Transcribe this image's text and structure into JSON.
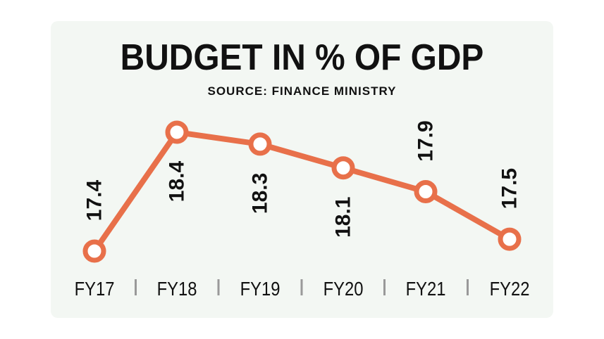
{
  "chart_data": {
    "type": "line",
    "title": "BUDGET IN % OF GDP",
    "subtitle": "SOURCE: FINANCE MINISTRY",
    "categories": [
      "FY17",
      "FY18",
      "FY19",
      "FY20",
      "FY21",
      "FY22"
    ],
    "values": [
      17.4,
      18.4,
      18.3,
      18.1,
      17.9,
      17.5
    ],
    "value_labels": [
      "17.4",
      "18.4",
      "18.3",
      "18.1",
      "17.9",
      "17.5"
    ],
    "grid": false,
    "legend": "none",
    "line_color": "#e8704a",
    "background_color": "#f3f7f3"
  }
}
